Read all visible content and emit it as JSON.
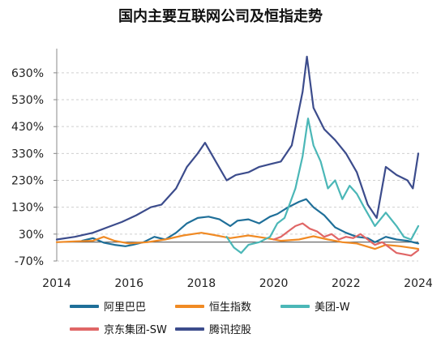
{
  "chart_data": {
    "type": "line",
    "title": "国内主要互联网公司及恒指走势",
    "xlabel": "",
    "ylabel": "",
    "xlim": [
      2014.0,
      2024.0
    ],
    "ylim": [
      -70,
      720
    ],
    "x_ticks": [
      "2014",
      "2016",
      "2018",
      "2020",
      "2022",
      "2024"
    ],
    "y_ticks": [
      "630%",
      "530%",
      "430%",
      "330%",
      "230%",
      "130%",
      "30%",
      "-70%"
    ],
    "y_tick_values": [
      630,
      530,
      430,
      330,
      230,
      130,
      30,
      -70
    ],
    "baseline": 0,
    "grid": "horizontal dashed",
    "legend_position": "bottom",
    "series": [
      {
        "name": "阿里巴巴",
        "color": "#1f6f99",
        "x": [
          2014.7,
          2015.0,
          2015.3,
          2015.6,
          2015.9,
          2016.1,
          2016.4,
          2016.7,
          2017.0,
          2017.3,
          2017.6,
          2017.9,
          2018.2,
          2018.5,
          2018.8,
          2019.0,
          2019.3,
          2019.6,
          2019.9,
          2020.1,
          2020.4,
          2020.7,
          2020.9,
          2021.1,
          2021.4,
          2021.7,
          2022.0,
          2022.3,
          2022.6,
          2022.8,
          2023.1,
          2023.4,
          2023.7,
          2024.0
        ],
        "y": [
          5,
          15,
          -2,
          -10,
          -15,
          -10,
          0,
          20,
          10,
          35,
          70,
          90,
          95,
          85,
          60,
          80,
          85,
          70,
          95,
          105,
          130,
          150,
          160,
          130,
          100,
          55,
          35,
          20,
          15,
          0,
          20,
          10,
          5,
          -5
        ]
      },
      {
        "name": "恒生指数",
        "color": "#f08a24",
        "x": [
          2014.0,
          2014.5,
          2015.0,
          2015.3,
          2015.6,
          2016.0,
          2016.5,
          2017.0,
          2017.5,
          2018.0,
          2018.3,
          2018.8,
          2019.3,
          2019.8,
          2020.2,
          2020.7,
          2021.1,
          2021.5,
          2021.9,
          2022.3,
          2022.8,
          2023.1,
          2023.5,
          2024.0
        ],
        "y": [
          0,
          3,
          5,
          20,
          5,
          -5,
          0,
          10,
          25,
          35,
          28,
          15,
          25,
          15,
          5,
          10,
          22,
          10,
          0,
          -5,
          -25,
          -10,
          -15,
          -25
        ]
      },
      {
        "name": "美团-W",
        "color": "#4bb7b7",
        "x": [
          2018.7,
          2018.9,
          2019.1,
          2019.3,
          2019.6,
          2019.9,
          2020.1,
          2020.3,
          2020.6,
          2020.8,
          2020.95,
          2021.1,
          2021.3,
          2021.5,
          2021.7,
          2021.9,
          2022.1,
          2022.3,
          2022.5,
          2022.8,
          2023.1,
          2023.4,
          2023.6,
          2023.8,
          2024.0
        ],
        "y": [
          20,
          -20,
          -40,
          -10,
          0,
          20,
          70,
          90,
          200,
          320,
          460,
          360,
          300,
          200,
          230,
          160,
          210,
          180,
          130,
          60,
          110,
          60,
          20,
          10,
          60
        ]
      },
      {
        "name": "京东集团-SW",
        "color": "#e06666",
        "x": [
          2020.0,
          2020.2,
          2020.4,
          2020.6,
          2020.8,
          2021.0,
          2021.2,
          2021.4,
          2021.6,
          2021.8,
          2022.0,
          2022.2,
          2022.4,
          2022.6,
          2022.8,
          2023.0,
          2023.2,
          2023.4,
          2023.6,
          2023.8,
          2024.0
        ],
        "y": [
          10,
          20,
          40,
          60,
          70,
          50,
          40,
          20,
          30,
          10,
          20,
          15,
          30,
          10,
          -10,
          0,
          -20,
          -40,
          -45,
          -50,
          -30
        ]
      },
      {
        "name": "腾讯控股",
        "color": "#3c4c8c",
        "x": [
          2014.0,
          2014.5,
          2015.0,
          2015.4,
          2015.8,
          2016.2,
          2016.6,
          2016.9,
          2017.3,
          2017.6,
          2017.9,
          2018.1,
          2018.4,
          2018.7,
          2018.95,
          2019.3,
          2019.6,
          2019.9,
          2020.2,
          2020.5,
          2020.8,
          2020.92,
          2021.1,
          2021.4,
          2021.7,
          2022.0,
          2022.3,
          2022.6,
          2022.85,
          2023.1,
          2023.4,
          2023.7,
          2023.85,
          2024.0
        ],
        "y": [
          10,
          20,
          35,
          55,
          75,
          100,
          130,
          140,
          200,
          280,
          330,
          370,
          300,
          230,
          250,
          260,
          280,
          290,
          300,
          360,
          560,
          690,
          500,
          420,
          380,
          330,
          260,
          140,
          90,
          280,
          250,
          230,
          200,
          330
        ]
      }
    ]
  }
}
